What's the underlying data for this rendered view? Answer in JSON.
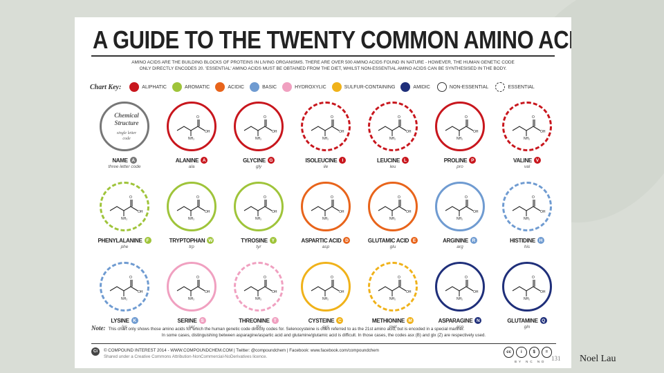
{
  "poster": {
    "title": "A GUIDE TO THE TWENTY COMMON AMINO ACIDS",
    "intro_line1": "AMINO ACIDS ARE THE BUILDING BLOCKS OF PROTEINS IN LIVING ORGANISMS. THERE ARE OVER 500 AMINO ACIDS FOUND IN NATURE - HOWEVER, THE HUMAN GENETIC CODE",
    "intro_line2": "ONLY DIRECTLY ENCODES 20. 'ESSENTIAL' AMINO ACIDS MUST BE OBTAINED FROM THE DIET, WHILST NON-ESSENTIAL AMINO ACIDS CAN BE SYNTHESISED IN THE BODY."
  },
  "chart_key": {
    "title": "Chart Key:",
    "items": [
      {
        "label": "ALIPHATIC",
        "color": "#c8161d"
      },
      {
        "label": "AROMATIC",
        "color": "#9fc43a"
      },
      {
        "label": "ACIDIC",
        "color": "#e8641b"
      },
      {
        "label": "BASIC",
        "color": "#6f9bd1"
      },
      {
        "label": "HYDROXYLIC",
        "color": "#f0a0c0"
      },
      {
        "label": "SULFUR-CONTAINING",
        "color": "#f0b21a"
      },
      {
        "label": "AMIDIC",
        "color": "#1f2f7a"
      }
    ],
    "non_essential": "NON-ESSENTIAL",
    "essential": "ESSENTIAL"
  },
  "legend": {
    "title_line1": "Chemical",
    "title_line2": "Structure",
    "sub_line1": "single letter",
    "sub_line2": "code",
    "name": "NAME",
    "code": "A",
    "abbr": "three letter code"
  },
  "amino_acids": [
    {
      "name": "ALANINE",
      "code": "A",
      "abbr": "ala",
      "color": "#c8161d",
      "essential": false
    },
    {
      "name": "GLYCINE",
      "code": "G",
      "abbr": "gly",
      "color": "#c8161d",
      "essential": false
    },
    {
      "name": "ISOLEUCINE",
      "code": "I",
      "abbr": "ile",
      "color": "#c8161d",
      "essential": true
    },
    {
      "name": "LEUCINE",
      "code": "L",
      "abbr": "leu",
      "color": "#c8161d",
      "essential": true
    },
    {
      "name": "PROLINE",
      "code": "P",
      "abbr": "pro",
      "color": "#c8161d",
      "essential": false
    },
    {
      "name": "VALINE",
      "code": "V",
      "abbr": "val",
      "color": "#c8161d",
      "essential": true
    },
    {
      "name": "PHENYLALANINE",
      "code": "F",
      "abbr": "phe",
      "color": "#9fc43a",
      "essential": true
    },
    {
      "name": "TRYPTOPHAN",
      "code": "W",
      "abbr": "trp",
      "color": "#9fc43a",
      "essential": false
    },
    {
      "name": "TYROSINE",
      "code": "Y",
      "abbr": "tyr",
      "color": "#9fc43a",
      "essential": false
    },
    {
      "name": "ASPARTIC ACID",
      "code": "D",
      "abbr": "asp",
      "color": "#e8641b",
      "essential": false
    },
    {
      "name": "GLUTAMIC ACID",
      "code": "E",
      "abbr": "glu",
      "color": "#e8641b",
      "essential": false
    },
    {
      "name": "ARGININE",
      "code": "R",
      "abbr": "arg",
      "color": "#6f9bd1",
      "essential": false
    },
    {
      "name": "HISTIDINE",
      "code": "H",
      "abbr": "his",
      "color": "#6f9bd1",
      "essential": true
    },
    {
      "name": "LYSINE",
      "code": "K",
      "abbr": "lys",
      "color": "#6f9bd1",
      "essential": true
    },
    {
      "name": "SERINE",
      "code": "S",
      "abbr": "ser",
      "color": "#f0a0c0",
      "essential": false
    },
    {
      "name": "THREONINE",
      "code": "T",
      "abbr": "thr",
      "color": "#f0a0c0",
      "essential": true
    },
    {
      "name": "CYSTEINE",
      "code": "C",
      "abbr": "cys",
      "color": "#f0b21a",
      "essential": false
    },
    {
      "name": "METHIONINE",
      "code": "M",
      "abbr": "met",
      "color": "#f0b21a",
      "essential": true
    },
    {
      "name": "ASPARAGINE",
      "code": "N",
      "abbr": "asn",
      "color": "#1f2f7a",
      "essential": false
    },
    {
      "name": "GLUTAMINE",
      "code": "Q",
      "abbr": "gln",
      "color": "#1f2f7a",
      "essential": false
    }
  ],
  "note": {
    "label": "Note:",
    "line1": "This chart only shows those amino acids for which the human genetic code directly codes for. Selenocysteine is often referred to as the 21st amino acid, but is encoded in a special manner.",
    "line2": "In some cases, distinguishing between asparagine/aspartic acid and glutamine/glutamic acid is difficult. In those cases, the codes asx (B) and glx (Z) are respectively used."
  },
  "footer": {
    "logo": "Ci",
    "line1": "© COMPOUND INTEREST 2014 - WWW.COMPOUNDCHEM.COM | Twitter: @compoundchem | Facebook: www.facebook.com/compoundchem",
    "line2": "Shared under a Creative Commons Attribution-NonCommercial-NoDerivatives licence.",
    "cc_icons": [
      "cc",
      "i",
      "$",
      "="
    ],
    "cc_labels": "BY NC ND"
  },
  "slide": {
    "number": "131",
    "author": "Noel Lau"
  }
}
